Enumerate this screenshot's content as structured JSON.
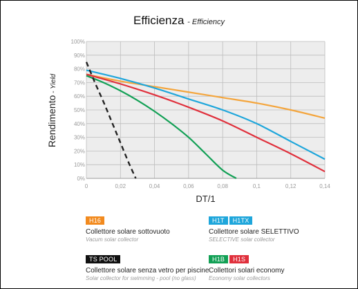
{
  "title": {
    "main": "Efficienza",
    "sub": "- Efficiency"
  },
  "chart_data": {
    "type": "line",
    "xlabel": "DT/1",
    "ylabel_main": "Rendimento",
    "ylabel_sub": "- Yield",
    "xlim": [
      0,
      0.14
    ],
    "ylim": [
      0,
      100
    ],
    "x_ticks": [
      "0",
      "0,02",
      "0,04",
      "0,06",
      "0,08",
      "0,1",
      "0,12",
      "0,14"
    ],
    "y_ticks": [
      "0%",
      "10%",
      "20%",
      "30%",
      "40%",
      "50%",
      "60%",
      "70%",
      "80%",
      "90%",
      "100%"
    ],
    "grid": true,
    "series": [
      {
        "color": "#f4a53c",
        "dash": false,
        "x": [
          0,
          0.02,
          0.04,
          0.06,
          0.08,
          0.1,
          0.12,
          0.14
        ],
        "y": [
          76,
          71,
          67,
          63,
          59,
          55,
          50,
          44
        ]
      },
      {
        "color": "#1ea6db",
        "dash": false,
        "x": [
          0,
          0.02,
          0.04,
          0.06,
          0.08,
          0.1,
          0.12,
          0.14
        ],
        "y": [
          79,
          73,
          66,
          58,
          50,
          40,
          27,
          14
        ]
      },
      {
        "color": "#e0303c",
        "dash": false,
        "x": [
          0,
          0.02,
          0.04,
          0.06,
          0.08,
          0.1,
          0.12,
          0.14
        ],
        "y": [
          76,
          69,
          61,
          52,
          42,
          30,
          18,
          5
        ]
      },
      {
        "color": "#12a055",
        "dash": false,
        "x": [
          0,
          0.01,
          0.02,
          0.03,
          0.04,
          0.05,
          0.06,
          0.07,
          0.08,
          0.088
        ],
        "y": [
          75,
          70,
          64,
          57,
          49,
          40,
          30,
          18,
          6,
          0
        ]
      },
      {
        "color": "#222222",
        "dash": true,
        "x": [
          0,
          0.005,
          0.01,
          0.015,
          0.02,
          0.025,
          0.029
        ],
        "y": [
          85,
          70,
          56,
          41,
          26,
          11,
          0
        ]
      }
    ]
  },
  "legend": [
    {
      "badges": [
        {
          "text": "H16",
          "color": "#f28a1e"
        }
      ],
      "title": "Collettore solare sottovuoto",
      "subtitle": "Vacum solar collector"
    },
    {
      "badges": [
        {
          "text": "H1T",
          "color": "#1ea6db"
        },
        {
          "text": "H1TX",
          "color": "#1ea6db"
        }
      ],
      "title": "Collettore solare SELETTIVO",
      "subtitle": "SELECTIVE solar collector"
    },
    {
      "badges": [
        {
          "text": "TS POOL",
          "color": "#111111"
        }
      ],
      "title": "Collettore solare senza vetro per piscine",
      "subtitle": "Solar collector for swimming - pool (no glass)"
    },
    {
      "badges": [
        {
          "text": "H1B",
          "color": "#12a055"
        },
        {
          "text": "H1S",
          "color": "#e0303c"
        }
      ],
      "title": "Collettori solari economy",
      "subtitle": "Economy solar collectors"
    }
  ]
}
